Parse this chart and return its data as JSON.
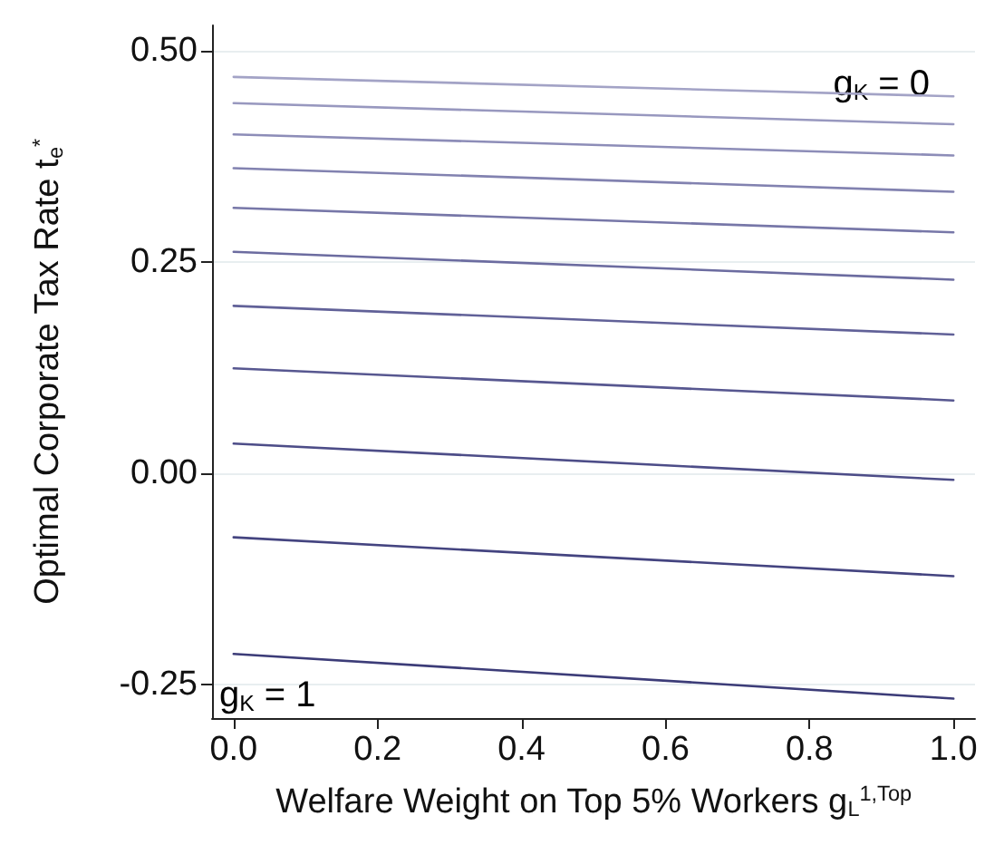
{
  "chart_data": {
    "type": "line",
    "xlabel": "Welfare Weight on Top 5% Workers g$_{L}$$^{1,Top}$",
    "ylabel": "Optimal Corporate Tax Rate t$_{e}$$^{*}$",
    "x": [
      0,
      1
    ],
    "series": [
      {
        "color": "#a3a3c6",
        "values": [
          0.469,
          0.446
        ]
      },
      {
        "color": "#9898bf",
        "values": [
          0.438,
          0.413
        ]
      },
      {
        "color": "#8d8db8",
        "values": [
          0.401,
          0.376
        ]
      },
      {
        "color": "#8282b0",
        "values": [
          0.361,
          0.333
        ]
      },
      {
        "color": "#7777a8",
        "values": [
          0.314,
          0.285
        ]
      },
      {
        "color": "#6c6ca0",
        "values": [
          0.262,
          0.229
        ]
      },
      {
        "color": "#616198",
        "values": [
          0.198,
          0.164
        ]
      },
      {
        "color": "#575790",
        "values": [
          0.124,
          0.086
        ]
      },
      {
        "color": "#4d4d88",
        "values": [
          0.035,
          -0.008
        ]
      },
      {
        "color": "#444480",
        "values": [
          -0.076,
          -0.122
        ]
      },
      {
        "color": "#3c3c78",
        "values": [
          -0.214,
          -0.267
        ]
      }
    ],
    "annotations": [
      {
        "text": "g$_{K}$ = 0",
        "x": 0.9,
        "y": 0.46
      },
      "g$_{K}$ = 1"
    ],
    "xlim": [
      -0.03,
      1.03
    ],
    "xticks": [
      {
        "value": 0,
        "label": "0.0"
      },
      0.2,
      0.4,
      0.6,
      0.8,
      {
        "value": 1,
        "label": "1.0"
      }
    ],
    "ylim": [
      -0.29,
      0.53
    ],
    "yticks": [
      -0.25,
      {
        "value": 0,
        "label": "0.00"
      },
      0.25,
      {
        "value": 0.5,
        "label": "0.50"
      }
    ],
    "grid": "y",
    "marker": "none",
    "line_style": "solid"
  }
}
